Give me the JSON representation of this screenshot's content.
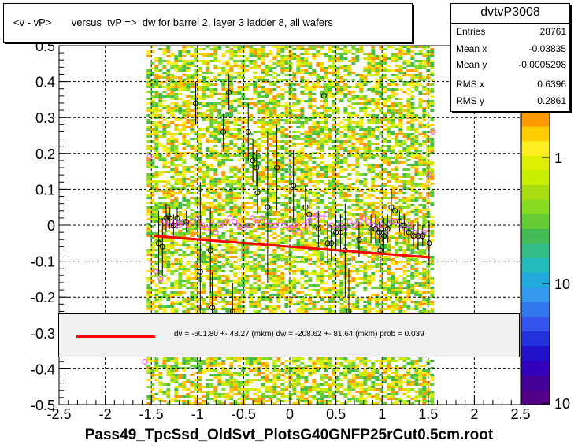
{
  "title": "<v - vP>       versus  tvP =>  dw for barrel 2, layer 3 ladder 8, all wafers",
  "stats": {
    "name": "dvtvP3008",
    "rows": [
      {
        "label": "Entries",
        "value": "28761"
      },
      {
        "label": "Mean x",
        "value": "-0.03835"
      },
      {
        "label": "Mean y",
        "value": "-0.0005298"
      },
      {
        "label": "RMS x",
        "value": "0.6396"
      },
      {
        "label": "RMS y",
        "value": "0.2861"
      }
    ]
  },
  "fit_text": "dv = -601.80 +- 48.27 (mkm) dw = -208.62 +- 81.64 (mkm) prob = 0.039",
  "xtitle": "Pass49_TpcSsd_OldSvt_PlotsG40GNFP25rCut0.5cm.root",
  "colors": {
    "fit": "#ff0000",
    "profile": "#ff44ff",
    "points": "#000000"
  },
  "chart_data": {
    "type": "scatter",
    "xlim": [
      -2.5,
      2.5
    ],
    "ylim": [
      -0.5,
      0.5
    ],
    "x_ticks": [
      "-2.5",
      "-2",
      "-1.5",
      "-1",
      "-0.5",
      "0",
      "0.5",
      "1",
      "1.5",
      "2",
      "2.5"
    ],
    "y_ticks": [
      "-0.5",
      "-0.4",
      "-0.3",
      "-0.2",
      "-0.1",
      "0",
      "0.1",
      "0.2",
      "0.3",
      "0.4",
      "0.5"
    ],
    "grid": true,
    "z_scale": "log",
    "z_ticks": [
      "1",
      "10",
      "10"
    ],
    "fit_line": {
      "x": [
        -1.47,
        1.52
      ],
      "y": [
        -0.03,
        -0.09
      ]
    },
    "profile_points": [
      {
        "x": -1.52,
        "y": 0.19
      },
      {
        "x": -1.45,
        "y": -0.13
      },
      {
        "x": -1.4,
        "y": -0.15
      },
      {
        "x": -1.35,
        "y": 0.01
      },
      {
        "x": -1.3,
        "y": 0.0
      },
      {
        "x": -1.25,
        "y": 0.01
      },
      {
        "x": -1.2,
        "y": 0.0
      },
      {
        "x": -1.15,
        "y": 0.01
      },
      {
        "x": -1.1,
        "y": 0.0
      },
      {
        "x": -1.05,
        "y": 0.01
      },
      {
        "x": -1.0,
        "y": 0.02
      },
      {
        "x": -0.95,
        "y": 0.0
      },
      {
        "x": -0.9,
        "y": -0.01
      },
      {
        "x": -0.85,
        "y": 0.01
      },
      {
        "x": -0.8,
        "y": -0.02
      },
      {
        "x": -0.75,
        "y": 0.0
      },
      {
        "x": -0.7,
        "y": 0.01
      },
      {
        "x": -0.65,
        "y": 0.02
      },
      {
        "x": -0.6,
        "y": 0.01
      },
      {
        "x": -0.55,
        "y": 0.0
      },
      {
        "x": -0.5,
        "y": -0.01
      },
      {
        "x": -0.45,
        "y": 0.0
      },
      {
        "x": -0.4,
        "y": 0.02
      },
      {
        "x": -0.35,
        "y": 0.01
      },
      {
        "x": -0.3,
        "y": 0.02
      },
      {
        "x": -0.25,
        "y": 0.01
      },
      {
        "x": -0.2,
        "y": 0.0
      },
      {
        "x": -0.15,
        "y": 0.0
      },
      {
        "x": -0.1,
        "y": 0.01
      },
      {
        "x": -0.05,
        "y": 0.0
      },
      {
        "x": 0.0,
        "y": -0.01
      },
      {
        "x": 0.05,
        "y": 0.0
      },
      {
        "x": 0.1,
        "y": -0.02
      },
      {
        "x": 0.15,
        "y": 0.0
      },
      {
        "x": 0.2,
        "y": 0.01
      },
      {
        "x": 0.25,
        "y": 0.02
      },
      {
        "x": 0.3,
        "y": 0.03
      },
      {
        "x": 0.35,
        "y": 0.02
      },
      {
        "x": 0.4,
        "y": 0.03
      },
      {
        "x": 0.45,
        "y": 0.0
      },
      {
        "x": 0.5,
        "y": -0.01
      },
      {
        "x": 0.55,
        "y": 0.0
      },
      {
        "x": 0.6,
        "y": -0.01
      },
      {
        "x": 0.65,
        "y": 0.01
      },
      {
        "x": 0.7,
        "y": 0.0
      },
      {
        "x": 0.75,
        "y": 0.01
      },
      {
        "x": 0.8,
        "y": 0.02
      },
      {
        "x": 0.85,
        "y": 0.01
      },
      {
        "x": 0.9,
        "y": 0.0
      },
      {
        "x": 0.95,
        "y": -0.01
      },
      {
        "x": 1.0,
        "y": 0.0
      },
      {
        "x": 1.05,
        "y": -0.02
      },
      {
        "x": 1.1,
        "y": 0.01
      },
      {
        "x": 1.15,
        "y": 0.01
      },
      {
        "x": 1.2,
        "y": 0.0
      },
      {
        "x": 1.25,
        "y": -0.01
      },
      {
        "x": 1.3,
        "y": 0.0
      },
      {
        "x": 1.35,
        "y": -0.02
      },
      {
        "x": 1.4,
        "y": -0.03
      },
      {
        "x": 1.45,
        "y": -0.02
      },
      {
        "x": 1.51,
        "y": 0.14
      },
      {
        "x": 1.55,
        "y": 0.26
      },
      {
        "x": -1.57,
        "y": -0.38
      }
    ],
    "mean_points": [
      {
        "x": -1.42,
        "y": -0.05,
        "err": 0.09
      },
      {
        "x": -1.38,
        "y": -0.06,
        "err": 0.08
      },
      {
        "x": -1.34,
        "y": 0.02,
        "err": 0.04
      },
      {
        "x": -1.3,
        "y": 0.02,
        "err": 0.03
      },
      {
        "x": -1.26,
        "y": 0.0,
        "err": 0.03
      },
      {
        "x": -1.22,
        "y": 0.02,
        "err": 0.03
      },
      {
        "x": -1.12,
        "y": 0.01,
        "err": 0.03
      },
      {
        "x": -1.02,
        "y": 0.34,
        "err": 0.06
      },
      {
        "x": -0.97,
        "y": -0.13,
        "err": 0.25
      },
      {
        "x": -0.86,
        "y": -0.07,
        "err": 0.12
      },
      {
        "x": -0.84,
        "y": -0.23,
        "err": 0.1
      },
      {
        "x": -0.72,
        "y": 0.26,
        "err": 0.05
      },
      {
        "x": -0.66,
        "y": 0.37,
        "err": 0.05
      },
      {
        "x": -0.62,
        "y": -0.24,
        "err": 0.08
      },
      {
        "x": -0.45,
        "y": 0.26,
        "err": 0.08
      },
      {
        "x": -0.4,
        "y": 0.18,
        "err": 0.06
      },
      {
        "x": -0.36,
        "y": 0.16,
        "err": 0.05
      },
      {
        "x": -0.35,
        "y": 0.09,
        "err": 0.06
      },
      {
        "x": -0.24,
        "y": 0.05,
        "err": 0.21
      },
      {
        "x": -0.14,
        "y": 0.16,
        "err": 0.12
      },
      {
        "x": 0.04,
        "y": 0.11,
        "err": 0.1
      },
      {
        "x": 0.17,
        "y": 0.05,
        "err": 0.06
      },
      {
        "x": 0.21,
        "y": 0.03,
        "err": 0.05
      },
      {
        "x": 0.31,
        "y": -0.01,
        "err": 0.05
      },
      {
        "x": 0.37,
        "y": 0.36,
        "err": 0.05
      },
      {
        "x": 0.41,
        "y": -0.05,
        "err": 0.06
      },
      {
        "x": 0.45,
        "y": -0.05,
        "err": 0.05
      },
      {
        "x": 0.5,
        "y": -0.02,
        "err": 0.05
      },
      {
        "x": 0.55,
        "y": -0.02,
        "err": 0.05
      },
      {
        "x": 0.6,
        "y": -0.07,
        "err": 0.13
      },
      {
        "x": 0.64,
        "y": -0.24,
        "err": 0.12
      },
      {
        "x": 0.75,
        "y": -0.04,
        "err": 0.05
      },
      {
        "x": 0.88,
        "y": -0.01,
        "err": 0.04
      },
      {
        "x": 0.93,
        "y": -0.01,
        "err": 0.04
      },
      {
        "x": 0.97,
        "y": -0.02,
        "err": 0.03
      },
      {
        "x": 1.02,
        "y": -0.03,
        "err": 0.05
      },
      {
        "x": 1.06,
        "y": -0.01,
        "err": 0.04
      },
      {
        "x": 1.1,
        "y": 0.05,
        "err": 0.05
      },
      {
        "x": 1.14,
        "y": 0.04,
        "err": 0.05
      },
      {
        "x": 1.19,
        "y": 0.01,
        "err": 0.03
      },
      {
        "x": 1.24,
        "y": 0.0,
        "err": 0.03
      },
      {
        "x": 1.29,
        "y": -0.02,
        "err": 0.03
      },
      {
        "x": 1.34,
        "y": -0.03,
        "err": 0.03
      },
      {
        "x": 1.39,
        "y": -0.03,
        "err": 0.04
      },
      {
        "x": 1.44,
        "y": -0.03,
        "err": 0.03
      },
      {
        "x": 1.51,
        "y": -0.05,
        "err": 0.06
      },
      {
        "x": 0.98,
        "y": -0.07,
        "err": 0.06
      }
    ]
  }
}
